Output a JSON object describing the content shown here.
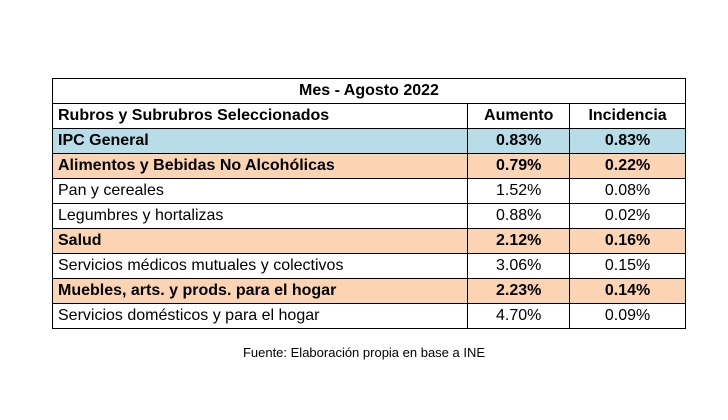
{
  "header": {
    "title": "Mes - Agosto 2022"
  },
  "table": {
    "columns": [
      "Rubros y Subrubros Seleccionados",
      "Aumento",
      "Incidencia"
    ],
    "rows": [
      [
        "IPC General",
        "0.83%",
        "0.83%"
      ],
      [
        "Alimentos y Bebidas No Alcohólicas",
        "0.79%",
        "0.22%"
      ],
      [
        "Pan y cereales",
        "1.52%",
        "0.08%"
      ],
      [
        "Legumbres y hortalizas",
        "0.88%",
        "0.02%"
      ],
      [
        "Salud",
        "2.12%",
        "0.16%"
      ],
      [
        "Servicios médicos mutuales y colectivos",
        "3.06%",
        "0.15%"
      ],
      [
        "Muebles, arts. y prods. para el hogar",
        "2.23%",
        "0.14%"
      ],
      [
        "Servicios domésticos y para el hogar",
        "4.70%",
        "0.09%"
      ]
    ]
  },
  "footer": "Fuente: Elaboración propia en base a INE"
}
